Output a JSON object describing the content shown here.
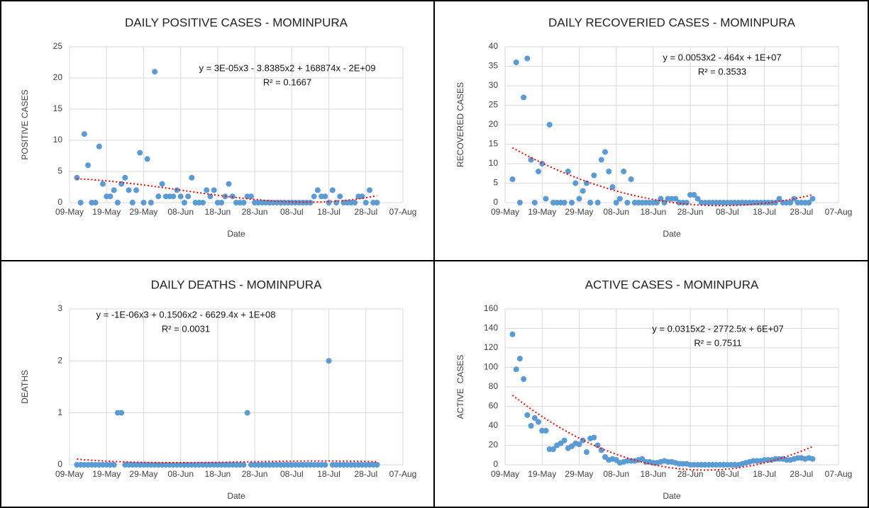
{
  "chart_data": [
    {
      "type": "scatter",
      "title": "DAILY POSITIVE CASES - MOMINPURA",
      "xlabel": "Date",
      "ylabel": "POSITIVE CASES",
      "color": "#5b9bd5",
      "grid": true,
      "xlim": [
        "09-May",
        "07-Aug"
      ],
      "xticks": [
        "09-May",
        "19-May",
        "29-May",
        "08-Jun",
        "18-Jun",
        "28-Jun",
        "08-Jul",
        "18-Jul",
        "28-Jul",
        "07-Aug"
      ],
      "ylim": [
        0,
        25
      ],
      "yticks": [
        0,
        5,
        10,
        15,
        20,
        25
      ],
      "trendline": {
        "order": 3,
        "color": "#ff0000",
        "equation": "y = 3E-05x3 - 3.8385x2 + 168874x - 2E+09",
        "r2": "R² = 0.1667"
      },
      "x": [
        "11-May",
        "12-May",
        "13-May",
        "14-May",
        "15-May",
        "16-May",
        "17-May",
        "18-May",
        "19-May",
        "20-May",
        "21-May",
        "22-May",
        "23-May",
        "24-May",
        "25-May",
        "26-May",
        "27-May",
        "28-May",
        "29-May",
        "30-May",
        "31-May",
        "01-Jun",
        "02-Jun",
        "03-Jun",
        "04-Jun",
        "05-Jun",
        "06-Jun",
        "07-Jun",
        "08-Jun",
        "09-Jun",
        "10-Jun",
        "11-Jun",
        "12-Jun",
        "13-Jun",
        "14-Jun",
        "15-Jun",
        "16-Jun",
        "17-Jun",
        "18-Jun",
        "19-Jun",
        "20-Jun",
        "21-Jun",
        "22-Jun",
        "23-Jun",
        "24-Jun",
        "25-Jun",
        "26-Jun",
        "27-Jun",
        "28-Jun",
        "29-Jun",
        "30-Jun",
        "01-Jul",
        "02-Jul",
        "03-Jul",
        "04-Jul",
        "05-Jul",
        "06-Jul",
        "07-Jul",
        "08-Jul",
        "09-Jul",
        "10-Jul",
        "11-Jul",
        "12-Jul",
        "13-Jul",
        "14-Jul",
        "15-Jul",
        "16-Jul",
        "17-Jul",
        "18-Jul",
        "19-Jul",
        "20-Jul",
        "21-Jul",
        "22-Jul",
        "23-Jul",
        "24-Jul",
        "25-Jul",
        "26-Jul",
        "27-Jul",
        "28-Jul",
        "29-Jul",
        "30-Jul",
        "31-Jul"
      ],
      "values": [
        4,
        0,
        11,
        6,
        0,
        0,
        9,
        3,
        1,
        1,
        2,
        0,
        3,
        4,
        2,
        0,
        2,
        8,
        0,
        7,
        0,
        21,
        1,
        3,
        1,
        1,
        1,
        2,
        1,
        0,
        1,
        4,
        0,
        0,
        0,
        2,
        1,
        2,
        0,
        0,
        1,
        3,
        1,
        0,
        0,
        0,
        1,
        1,
        0,
        0,
        0,
        0,
        0,
        0,
        0,
        0,
        0,
        0,
        0,
        0,
        0,
        0,
        0,
        0,
        1,
        2,
        1,
        1,
        0,
        2,
        0,
        1,
        0,
        0,
        0,
        0,
        1,
        1,
        0,
        2,
        0,
        0
      ]
    },
    {
      "type": "scatter",
      "title": "DAILY RECOVERIED CASES - MOMINPURA",
      "xlabel": "Date",
      "ylabel": "RECOVERED CASES",
      "color": "#5b9bd5",
      "grid": true,
      "xlim": [
        "09-May",
        "07-Aug"
      ],
      "xticks": [
        "09-May",
        "19-May",
        "29-May",
        "08-Jun",
        "18-Jun",
        "28-Jun",
        "08-Jul",
        "18-Jul",
        "28-Jul",
        "07-Aug"
      ],
      "ylim": [
        0,
        40
      ],
      "yticks": [
        0,
        5,
        10,
        15,
        20,
        25,
        30,
        35,
        40
      ],
      "trendline": {
        "order": 2,
        "color": "#ff0000",
        "equation": "y = 0.0053x2 - 464x + 1E+07",
        "r2": "R² = 0.3533"
      },
      "x": [
        "11-May",
        "12-May",
        "13-May",
        "14-May",
        "15-May",
        "16-May",
        "17-May",
        "18-May",
        "19-May",
        "20-May",
        "21-May",
        "22-May",
        "23-May",
        "24-May",
        "25-May",
        "26-May",
        "27-May",
        "28-May",
        "29-May",
        "30-May",
        "31-May",
        "01-Jun",
        "02-Jun",
        "03-Jun",
        "04-Jun",
        "05-Jun",
        "06-Jun",
        "07-Jun",
        "08-Jun",
        "09-Jun",
        "10-Jun",
        "11-Jun",
        "12-Jun",
        "13-Jun",
        "14-Jun",
        "15-Jun",
        "16-Jun",
        "17-Jun",
        "18-Jun",
        "19-Jun",
        "20-Jun",
        "21-Jun",
        "22-Jun",
        "23-Jun",
        "24-Jun",
        "25-Jun",
        "26-Jun",
        "27-Jun",
        "28-Jun",
        "29-Jun",
        "30-Jun",
        "01-Jul",
        "02-Jul",
        "03-Jul",
        "04-Jul",
        "05-Jul",
        "06-Jul",
        "07-Jul",
        "08-Jul",
        "09-Jul",
        "10-Jul",
        "11-Jul",
        "12-Jul",
        "13-Jul",
        "14-Jul",
        "15-Jul",
        "16-Jul",
        "17-Jul",
        "18-Jul",
        "19-Jul",
        "20-Jul",
        "21-Jul",
        "22-Jul",
        "23-Jul",
        "24-Jul",
        "25-Jul",
        "26-Jul",
        "27-Jul",
        "28-Jul",
        "29-Jul",
        "30-Jul",
        "31-Jul"
      ],
      "values": [
        6,
        36,
        0,
        27,
        37,
        11,
        0,
        8,
        10,
        1,
        20,
        0,
        0,
        0,
        0,
        8,
        0,
        5,
        1,
        3,
        5,
        0,
        7,
        0,
        11,
        13,
        8,
        4,
        0,
        1,
        8,
        0,
        6,
        0,
        0,
        0,
        0,
        0,
        0,
        0,
        1,
        0,
        1,
        1,
        1,
        0,
        0,
        0,
        2,
        2,
        1,
        0,
        0,
        0,
        0,
        0,
        0,
        0,
        0,
        0,
        0,
        0,
        0,
        0,
        0,
        0,
        0,
        0,
        0,
        0,
        0,
        0,
        1,
        0,
        0,
        0,
        1,
        0,
        0,
        0,
        0,
        1
      ]
    },
    {
      "type": "scatter",
      "title": "DAILY DEATHS - MOMINPURA",
      "xlabel": "Date",
      "ylabel": "DEATHS",
      "color": "#5b9bd5",
      "grid": true,
      "xlim": [
        "09-May",
        "07-Aug"
      ],
      "xticks": [
        "09-May",
        "19-May",
        "29-May",
        "08-Jun",
        "18-Jun",
        "28-Jun",
        "08-Jul",
        "18-Jul",
        "28-Jul",
        "07-Aug"
      ],
      "ylim": [
        0,
        3
      ],
      "yticks": [
        0,
        1,
        2,
        3
      ],
      "trendline": {
        "order": 3,
        "color": "#ff0000",
        "equation": "y = -1E-06x3 + 0.1506x2 - 6629.4x + 1E+08",
        "r2": "R² = 0.0031"
      },
      "x": [
        "11-May",
        "12-May",
        "13-May",
        "14-May",
        "15-May",
        "16-May",
        "17-May",
        "18-May",
        "19-May",
        "20-May",
        "21-May",
        "22-May",
        "23-May",
        "24-May",
        "25-May",
        "26-May",
        "27-May",
        "28-May",
        "29-May",
        "30-May",
        "31-May",
        "01-Jun",
        "02-Jun",
        "03-Jun",
        "04-Jun",
        "05-Jun",
        "06-Jun",
        "07-Jun",
        "08-Jun",
        "09-Jun",
        "10-Jun",
        "11-Jun",
        "12-Jun",
        "13-Jun",
        "14-Jun",
        "15-Jun",
        "16-Jun",
        "17-Jun",
        "18-Jun",
        "19-Jun",
        "20-Jun",
        "21-Jun",
        "22-Jun",
        "23-Jun",
        "24-Jun",
        "25-Jun",
        "26-Jun",
        "27-Jun",
        "28-Jun",
        "29-Jun",
        "30-Jun",
        "01-Jul",
        "02-Jul",
        "03-Jul",
        "04-Jul",
        "05-Jul",
        "06-Jul",
        "07-Jul",
        "08-Jul",
        "09-Jul",
        "10-Jul",
        "11-Jul",
        "12-Jul",
        "13-Jul",
        "14-Jul",
        "15-Jul",
        "16-Jul",
        "17-Jul",
        "18-Jul",
        "19-Jul",
        "20-Jul",
        "21-Jul",
        "22-Jul",
        "23-Jul",
        "24-Jul",
        "25-Jul",
        "26-Jul",
        "27-Jul",
        "28-Jul",
        "29-Jul",
        "30-Jul",
        "31-Jul"
      ],
      "values": [
        0,
        0,
        0,
        0,
        0,
        0,
        0,
        0,
        0,
        0,
        0,
        1,
        1,
        0,
        0,
        0,
        0,
        0,
        0,
        0,
        0,
        0,
        0,
        0,
        0,
        0,
        0,
        0,
        0,
        0,
        0,
        0,
        0,
        0,
        0,
        0,
        0,
        0,
        0,
        0,
        0,
        0,
        0,
        0,
        0,
        0,
        1,
        0,
        0,
        0,
        0,
        0,
        0,
        0,
        0,
        0,
        0,
        0,
        0,
        0,
        0,
        0,
        0,
        0,
        0,
        0,
        0,
        0,
        2,
        0,
        0,
        0,
        0,
        0,
        0,
        0,
        0,
        0,
        0,
        0,
        0,
        0
      ]
    },
    {
      "type": "scatter",
      "title": "ACTIVE CASES - MOMINPURA",
      "xlabel": "Date",
      "ylabel": "ACTIVE  CASES",
      "color": "#5b9bd5",
      "grid": true,
      "xlim": [
        "09-May",
        "07-Aug"
      ],
      "xticks": [
        "09-May",
        "19-May",
        "29-May",
        "08-Jun",
        "18-Jun",
        "28-Jun",
        "08-Jul",
        "18-Jul",
        "28-Jul",
        "07-Aug"
      ],
      "ylim": [
        0,
        160
      ],
      "yticks": [
        0,
        20,
        40,
        60,
        80,
        100,
        120,
        140,
        160
      ],
      "trendline": {
        "order": 2,
        "color": "#ff0000",
        "equation": "y = 0.0315x2 - 2772.5x + 6E+07",
        "r2": "R² = 0.7511"
      },
      "x": [
        "11-May",
        "12-May",
        "13-May",
        "14-May",
        "15-May",
        "16-May",
        "17-May",
        "18-May",
        "19-May",
        "20-May",
        "21-May",
        "22-May",
        "23-May",
        "24-May",
        "25-May",
        "26-May",
        "27-May",
        "28-May",
        "29-May",
        "30-May",
        "31-May",
        "01-Jun",
        "02-Jun",
        "03-Jun",
        "04-Jun",
        "05-Jun",
        "06-Jun",
        "07-Jun",
        "08-Jun",
        "09-Jun",
        "10-Jun",
        "11-Jun",
        "12-Jun",
        "13-Jun",
        "14-Jun",
        "15-Jun",
        "16-Jun",
        "17-Jun",
        "18-Jun",
        "19-Jun",
        "20-Jun",
        "21-Jun",
        "22-Jun",
        "23-Jun",
        "24-Jun",
        "25-Jun",
        "26-Jun",
        "27-Jun",
        "28-Jun",
        "29-Jun",
        "30-Jun",
        "01-Jul",
        "02-Jul",
        "03-Jul",
        "04-Jul",
        "05-Jul",
        "06-Jul",
        "07-Jul",
        "08-Jul",
        "09-Jul",
        "10-Jul",
        "11-Jul",
        "12-Jul",
        "13-Jul",
        "14-Jul",
        "15-Jul",
        "16-Jul",
        "17-Jul",
        "18-Jul",
        "19-Jul",
        "20-Jul",
        "21-Jul",
        "22-Jul",
        "23-Jul",
        "24-Jul",
        "25-Jul",
        "26-Jul",
        "27-Jul",
        "28-Jul",
        "29-Jul",
        "30-Jul",
        "31-Jul"
      ],
      "values": [
        134,
        98,
        109,
        88,
        51,
        40,
        48,
        44,
        35,
        35,
        16,
        16,
        20,
        22,
        25,
        17,
        19,
        22,
        21,
        25,
        13,
        27,
        28,
        20,
        15,
        8,
        5,
        6,
        5,
        2,
        3,
        4,
        4,
        4,
        5,
        6,
        3,
        3,
        2,
        2,
        3,
        4,
        3,
        3,
        2,
        1,
        1,
        1,
        0,
        0,
        0,
        0,
        0,
        0,
        0,
        0,
        0,
        0,
        0,
        0,
        0,
        0,
        1,
        2,
        3,
        4,
        4,
        4,
        5,
        5,
        5,
        6,
        6,
        6,
        5,
        5,
        6,
        7,
        7,
        6,
        7,
        6
      ]
    }
  ]
}
